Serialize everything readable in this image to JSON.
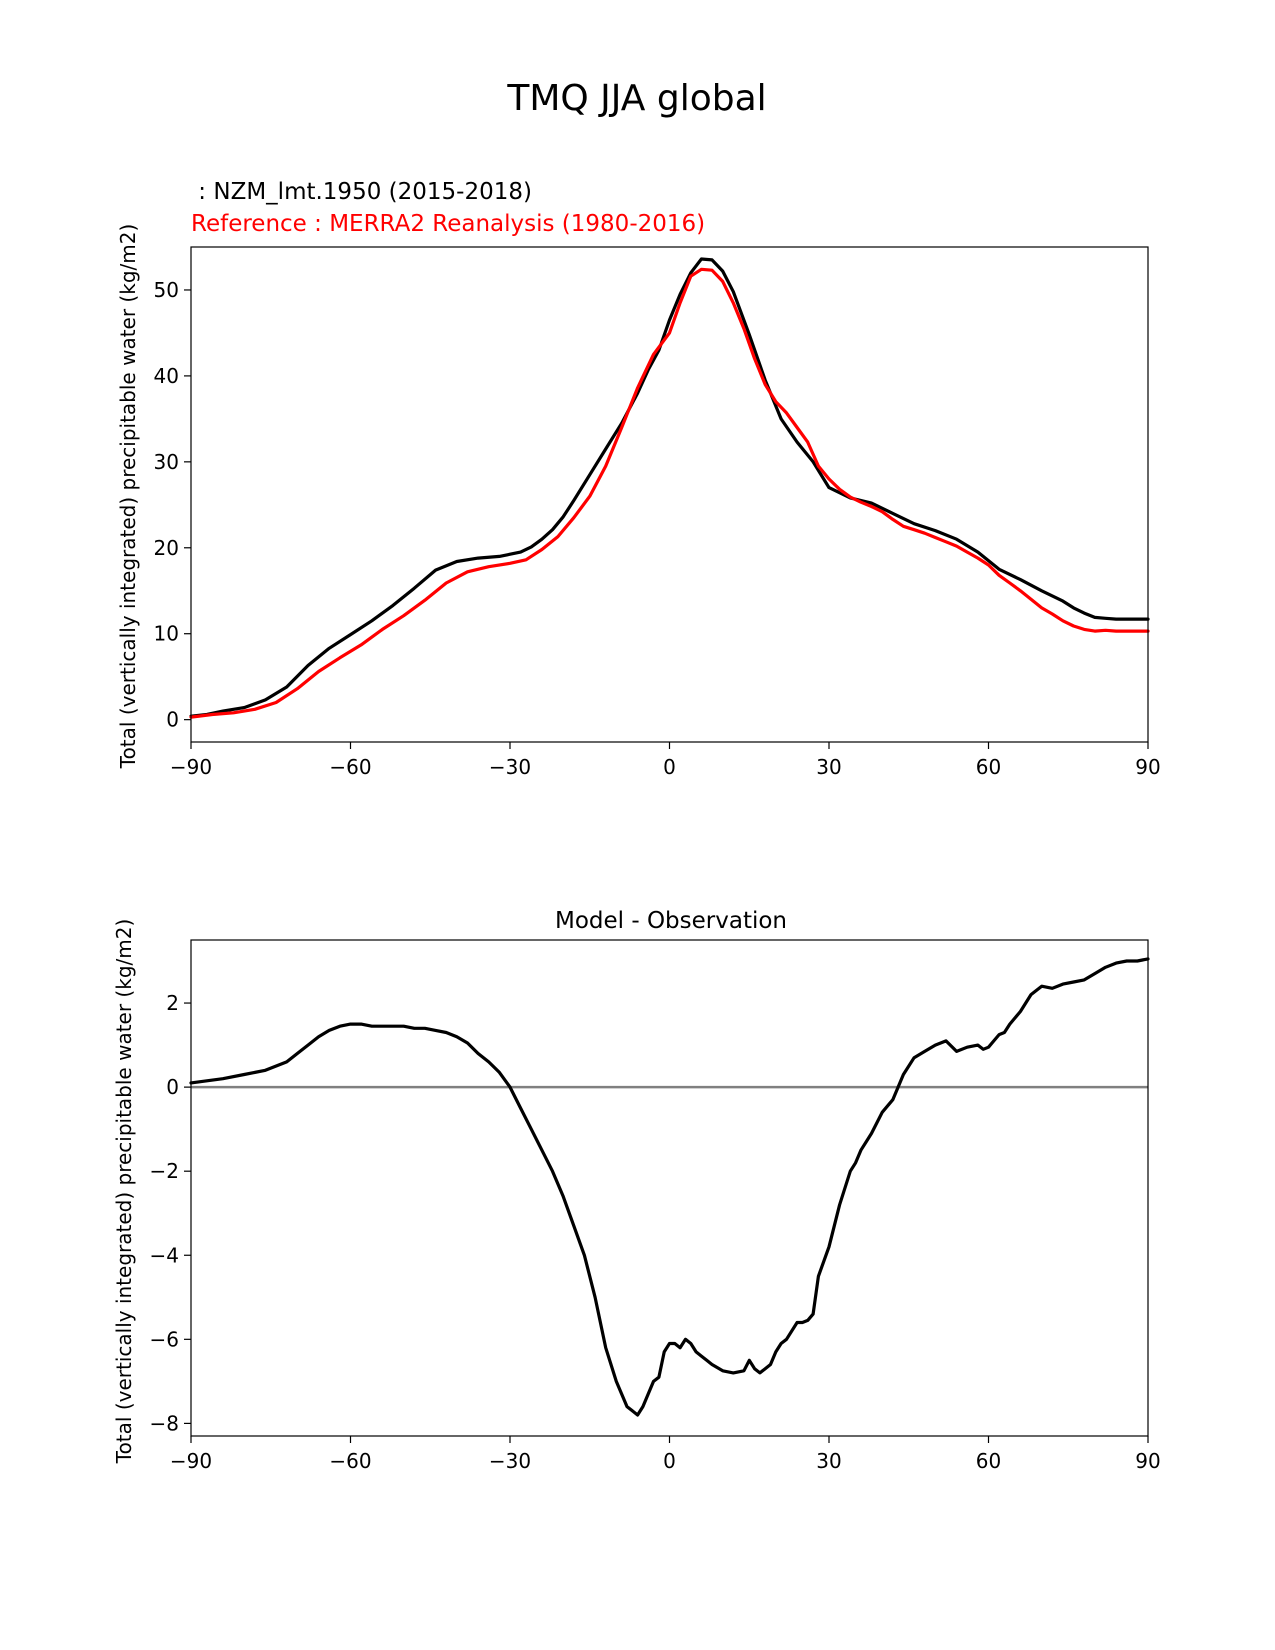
{
  "title": "TMQ JJA global",
  "colors": {
    "model": "#000000",
    "reference": "#ff0000",
    "zero_line": "#808080"
  },
  "chart_data": [
    {
      "type": "line",
      "test_label": " : NZM_lmt.1950 (2015-2018)",
      "ref_label": "Reference : MERRA2 Reanalysis (1980-2016)",
      "title": "",
      "xlabel": "",
      "ylabel": "Total (vertically integrated) precipitable water (kg/m2)",
      "xlim": [
        -90,
        90
      ],
      "ylim": [
        -2.6,
        55
      ],
      "xticks": [
        -90,
        -60,
        -30,
        0,
        30,
        60,
        90
      ],
      "xtick_labels": [
        "−90",
        "−60",
        "−30",
        "0",
        "30",
        "60",
        "90"
      ],
      "yticks": [
        0,
        10,
        20,
        30,
        40,
        50
      ],
      "ytick_labels": [
        "0",
        "10",
        "20",
        "30",
        "40",
        "50"
      ],
      "series": [
        {
          "name": "NZM_lmt.1950 (2015-2018)",
          "color": "#000000",
          "x": [
            -90,
            -87,
            -84,
            -80,
            -76,
            -72,
            -68,
            -64,
            -60,
            -56,
            -52,
            -48,
            -44,
            -40,
            -36,
            -32,
            -28,
            -26,
            -24,
            -22,
            -20,
            -18,
            -15,
            -12,
            -9,
            -6,
            -4,
            -2,
            0,
            2,
            4,
            6,
            8,
            10,
            12,
            15,
            18,
            21,
            24,
            27,
            30,
            34,
            38,
            42,
            46,
            50,
            54,
            58,
            62,
            66,
            70,
            74,
            76,
            78,
            80,
            82,
            84,
            86,
            88,
            90
          ],
          "y": [
            0.4,
            0.6,
            1.0,
            1.4,
            2.3,
            3.8,
            6.3,
            8.3,
            9.9,
            11.5,
            13.3,
            15.3,
            17.4,
            18.4,
            18.8,
            19.0,
            19.5,
            20.1,
            21.0,
            22.1,
            23.6,
            25.5,
            28.5,
            31.5,
            34.5,
            38.0,
            40.7,
            43.0,
            46.5,
            49.5,
            52.0,
            53.6,
            53.5,
            52.2,
            49.8,
            44.8,
            39.5,
            35.0,
            32.3,
            30.0,
            27.0,
            25.8,
            25.2,
            24.0,
            22.8,
            22.0,
            21.0,
            19.5,
            17.5,
            16.3,
            15.0,
            13.8,
            13.0,
            12.4,
            11.9,
            11.8,
            11.7,
            11.7,
            11.7,
            11.7
          ]
        },
        {
          "name": "MERRA2 Reanalysis (1980-2016)",
          "color": "#ff0000",
          "x": [
            -90,
            -86,
            -82,
            -78,
            -74,
            -70,
            -66,
            -62,
            -58,
            -54,
            -50,
            -46,
            -42,
            -38,
            -34,
            -30,
            -27,
            -24,
            -21,
            -18,
            -15,
            -12,
            -9,
            -6,
            -3,
            0,
            2,
            4,
            6,
            8,
            10,
            12,
            14,
            16,
            18,
            20,
            22,
            24,
            26,
            28,
            30,
            32,
            34,
            36,
            38,
            40,
            42,
            44,
            46,
            48,
            50,
            52,
            54,
            56,
            58,
            60,
            62,
            64,
            66,
            68,
            70,
            72,
            74,
            76,
            78,
            80,
            82,
            84,
            86,
            88,
            90
          ],
          "y": [
            0.3,
            0.6,
            0.8,
            1.2,
            2.0,
            3.6,
            5.6,
            7.2,
            8.7,
            10.5,
            12.1,
            13.9,
            15.9,
            17.2,
            17.8,
            18.2,
            18.6,
            19.8,
            21.3,
            23.5,
            26.0,
            29.5,
            34.0,
            38.6,
            42.5,
            45.0,
            48.5,
            51.6,
            52.4,
            52.3,
            51.0,
            48.5,
            45.5,
            42.0,
            39.0,
            37.0,
            35.7,
            34.0,
            32.3,
            29.5,
            28.0,
            26.8,
            25.9,
            25.3,
            24.8,
            24.2,
            23.3,
            22.5,
            22.1,
            21.7,
            21.2,
            20.7,
            20.2,
            19.5,
            18.8,
            18.0,
            16.8,
            15.9,
            15.0,
            14.0,
            13.0,
            12.3,
            11.5,
            10.9,
            10.5,
            10.3,
            10.4,
            10.3,
            10.3,
            10.3,
            10.3
          ]
        }
      ]
    },
    {
      "type": "line",
      "title": "Model - Observation",
      "xlabel": "",
      "ylabel": "Total (vertically integrated) precipitable water (kg/m2)",
      "xlim": [
        -90,
        90
      ],
      "ylim": [
        -8.3,
        3.5
      ],
      "xticks": [
        -90,
        -60,
        -30,
        0,
        30,
        60,
        90
      ],
      "xtick_labels": [
        "−90",
        "−60",
        "−30",
        "0",
        "30",
        "60",
        "90"
      ],
      "yticks": [
        -8,
        -6,
        -4,
        -2,
        0,
        2
      ],
      "ytick_labels": [
        "−8",
        "−6",
        "−4",
        "−2",
        "0",
        "2"
      ],
      "zero_line": 0,
      "series": [
        {
          "name": "Model - Observation",
          "color": "#000000",
          "x": [
            -90,
            -87,
            -84,
            -80,
            -76,
            -72,
            -70,
            -68,
            -66,
            -64,
            -62,
            -60,
            -58,
            -56,
            -54,
            -52,
            -50,
            -48,
            -46,
            -44,
            -42,
            -40,
            -38,
            -36,
            -34,
            -32,
            -30,
            -28,
            -26,
            -24,
            -22,
            -20,
            -18,
            -16,
            -14,
            -12,
            -10,
            -8,
            -7,
            -6,
            -5,
            -4,
            -3,
            -2,
            -1,
            0,
            1,
            2,
            3,
            4,
            5,
            6,
            7,
            8,
            10,
            12,
            14,
            15,
            16,
            17,
            18,
            19,
            20,
            21,
            22,
            24,
            25,
            26,
            27,
            28,
            30,
            32,
            34,
            35,
            36,
            38,
            40,
            42,
            44,
            46,
            48,
            50,
            52,
            54,
            56,
            58,
            59,
            60,
            61,
            62,
            63,
            64,
            66,
            68,
            70,
            72,
            74,
            76,
            78,
            80,
            82,
            84,
            86,
            88,
            90
          ],
          "y": [
            0.1,
            0.15,
            0.2,
            0.3,
            0.4,
            0.6,
            0.8,
            1.0,
            1.2,
            1.35,
            1.45,
            1.5,
            1.5,
            1.45,
            1.45,
            1.45,
            1.45,
            1.4,
            1.4,
            1.35,
            1.3,
            1.2,
            1.05,
            0.8,
            0.6,
            0.35,
            0.0,
            -0.5,
            -1.0,
            -1.5,
            -2.0,
            -2.6,
            -3.3,
            -4.0,
            -5.0,
            -6.2,
            -7.0,
            -7.6,
            -7.7,
            -7.8,
            -7.6,
            -7.3,
            -7.0,
            -6.9,
            -6.3,
            -6.1,
            -6.1,
            -6.2,
            -6.0,
            -6.1,
            -6.3,
            -6.4,
            -6.5,
            -6.6,
            -6.75,
            -6.8,
            -6.75,
            -6.5,
            -6.7,
            -6.8,
            -6.7,
            -6.6,
            -6.3,
            -6.1,
            -6.0,
            -5.6,
            -5.6,
            -5.55,
            -5.4,
            -4.5,
            -3.8,
            -2.8,
            -2.0,
            -1.8,
            -1.5,
            -1.1,
            -0.6,
            -0.3,
            0.3,
            0.7,
            0.85,
            1.0,
            1.1,
            0.85,
            0.95,
            1.0,
            0.9,
            0.95,
            1.1,
            1.25,
            1.3,
            1.5,
            1.8,
            2.2,
            2.4,
            2.35,
            2.45,
            2.5,
            2.55,
            2.7,
            2.85,
            2.95,
            3.0,
            3.0,
            3.05
          ]
        }
      ]
    }
  ]
}
